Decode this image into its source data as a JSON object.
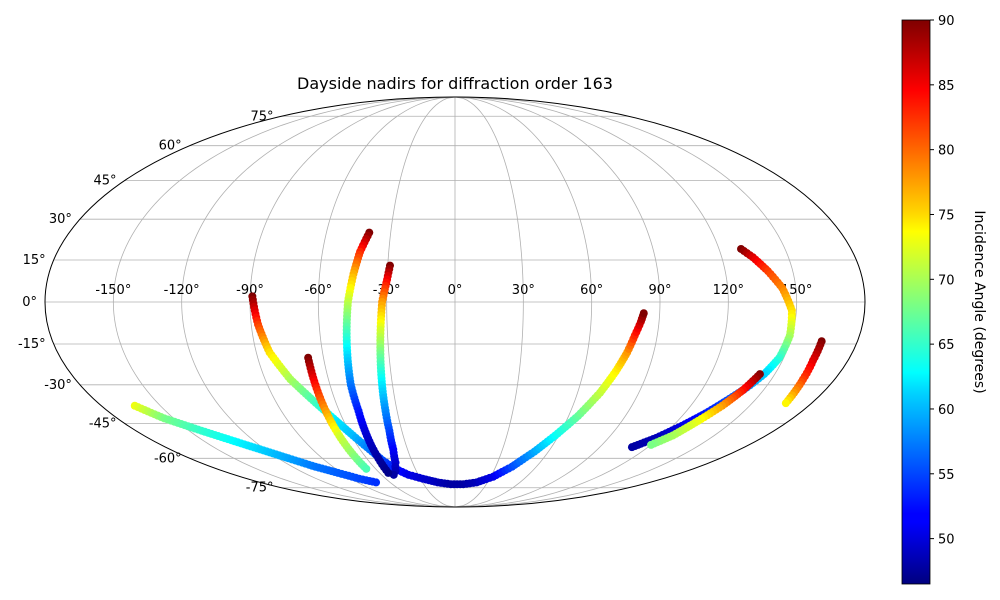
{
  "chart_data": {
    "type": "scatter",
    "projection": "mollweide",
    "title": "Dayside nadirs for diffraction order 163",
    "xlabel": "",
    "ylabel": "",
    "grid": true,
    "longitude_ticks": [
      "-150°",
      "-120°",
      "-90°",
      "-60°",
      "-30°",
      "0°",
      "30°",
      "60°",
      "90°",
      "120°",
      "150°"
    ],
    "latitude_ticks": [
      "75°",
      "60°",
      "45°",
      "30°",
      "15°",
      "0°",
      "-15°",
      "-30°",
      "-45°",
      "-60°",
      "-75°"
    ],
    "colorbar": {
      "label": "Incidence Angle (degrees)",
      "colormap": "jet",
      "vmin": 46.5,
      "vmax": 90,
      "ticks": [
        "90",
        "85",
        "80",
        "75",
        "70",
        "65",
        "60",
        "55",
        "50"
      ]
    },
    "series": [
      {
        "points": [
          [
            -89,
            2,
            90
          ],
          [
            -87,
            -8,
            82
          ],
          [
            -84,
            -18,
            75
          ],
          [
            -78,
            -28,
            70
          ],
          [
            -71,
            -36,
            66
          ],
          [
            -64,
            -44,
            62
          ],
          [
            -59,
            -50,
            60
          ],
          [
            -54,
            -56,
            57
          ],
          [
            -50,
            -61,
            55
          ],
          [
            -45,
            -65,
            53
          ],
          [
            -38,
            -68,
            51
          ],
          [
            -28,
            -70,
            50
          ],
          [
            -16,
            -72,
            49
          ],
          [
            -4,
            -73,
            48
          ],
          [
            8,
            -73,
            48
          ],
          [
            20,
            -72,
            49
          ],
          [
            32,
            -69,
            51
          ],
          [
            42,
            -64,
            55
          ],
          [
            51,
            -57,
            59
          ],
          [
            58,
            -50,
            63
          ],
          [
            65,
            -42,
            67
          ],
          [
            71,
            -33,
            71
          ],
          [
            75,
            -25,
            74
          ],
          [
            78,
            -18,
            78
          ],
          [
            80,
            -12,
            83
          ],
          [
            82,
            -7,
            87
          ],
          [
            83,
            -4,
            90
          ]
        ]
      },
      {
        "points": [
          [
            -29,
            13,
            90
          ],
          [
            -30,
            8,
            85
          ],
          [
            -32,
            0,
            78
          ],
          [
            -33,
            -10,
            72
          ],
          [
            -34,
            -20,
            67
          ],
          [
            -35,
            -30,
            62
          ],
          [
            -36,
            -40,
            58
          ],
          [
            -37,
            -48,
            55
          ],
          [
            -39,
            -56,
            52
          ],
          [
            -42,
            -62,
            50
          ],
          [
            -46,
            -66,
            49
          ],
          [
            -50,
            -68,
            48
          ]
        ]
      },
      {
        "points": [
          [
            -40,
            25,
            90
          ],
          [
            -43,
            18,
            83
          ],
          [
            -45,
            10,
            77
          ],
          [
            -47,
            0,
            71
          ],
          [
            -48,
            -10,
            66
          ],
          [
            -49,
            -20,
            61
          ],
          [
            -50,
            -30,
            57
          ],
          [
            -50,
            -40,
            53
          ],
          [
            -51,
            -50,
            50
          ],
          [
            -52,
            -60,
            48
          ],
          [
            -53,
            -67,
            47
          ]
        ]
      },
      {
        "points": [
          [
            -67,
            -20,
            90
          ],
          [
            -67,
            -30,
            84
          ],
          [
            -67,
            -40,
            78
          ],
          [
            -67,
            -50,
            72
          ],
          [
            -67,
            -58,
            69
          ],
          [
            -67,
            -65,
            66
          ]
        ]
      },
      {
        "points": [
          [
            -163,
            -38,
            73
          ],
          [
            -155,
            -43,
            68
          ],
          [
            -143,
            -48,
            65
          ],
          [
            -133,
            -52,
            63
          ],
          [
            -123,
            -56,
            61
          ],
          [
            -113,
            -60,
            59
          ],
          [
            -103,
            -64,
            57
          ],
          [
            -93,
            -67,
            56
          ],
          [
            -83,
            -70,
            55
          ],
          [
            -73,
            -72,
            54
          ]
        ]
      },
      {
        "points": [
          [
            130,
            19,
            90
          ],
          [
            134,
            16,
            86
          ],
          [
            139,
            11,
            82
          ],
          [
            144,
            5,
            79
          ],
          [
            148,
            -3,
            75
          ],
          [
            149,
            -12,
            70
          ],
          [
            148,
            -20,
            65
          ],
          [
            145,
            -26,
            61
          ],
          [
            141,
            -31,
            58
          ],
          [
            136,
            -36,
            55
          ],
          [
            131,
            -41,
            53
          ],
          [
            125,
            -46,
            51
          ],
          [
            118,
            -51,
            49
          ],
          [
            110,
            -55,
            48
          ]
        ]
      },
      {
        "points": [
          [
            164,
            -14,
            90
          ],
          [
            164,
            -21,
            86
          ],
          [
            165,
            -28,
            82
          ],
          [
            166,
            -33,
            78
          ],
          [
            167,
            -37,
            74
          ]
        ]
      },
      {
        "points": [
          [
            143,
            -26,
            90
          ],
          [
            140,
            -32,
            84
          ],
          [
            136,
            -38,
            78
          ],
          [
            131,
            -44,
            73
          ],
          [
            126,
            -50,
            70
          ],
          [
            120,
            -54,
            68
          ]
        ]
      }
    ]
  }
}
